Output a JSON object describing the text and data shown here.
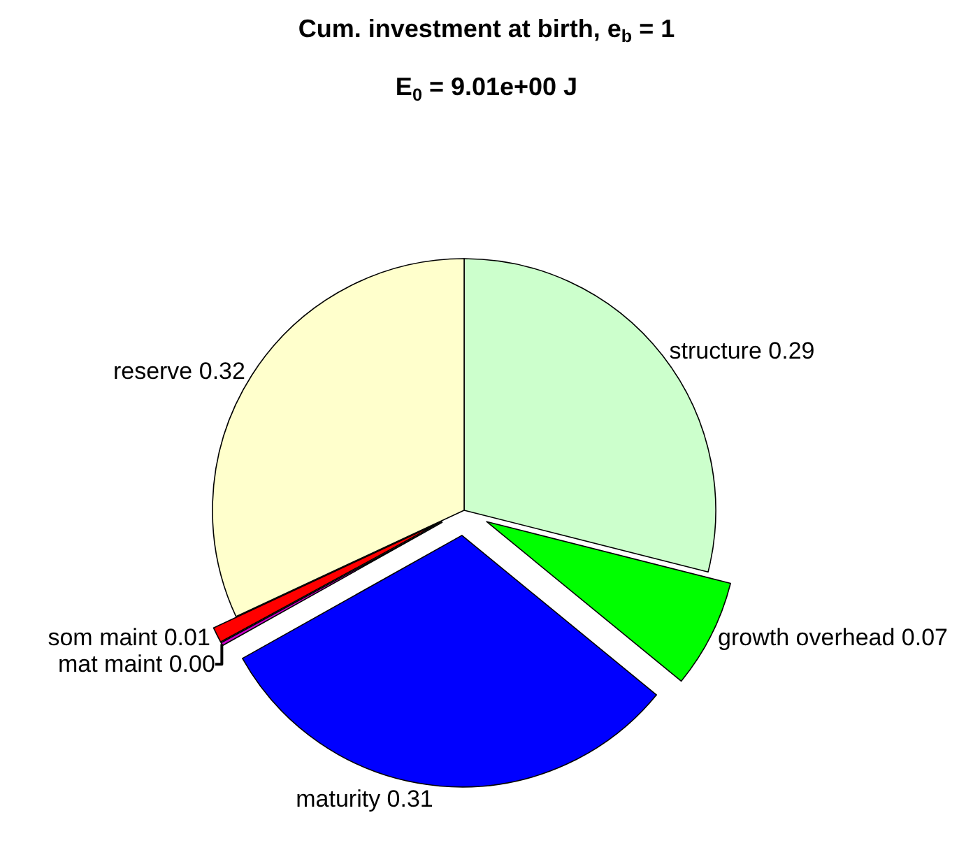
{
  "chart_data": {
    "type": "pie",
    "title": "Cum. investment at birth, e$_{b}$ = 1",
    "subtitle": "E$_{0}$ = 9.01e+00 J",
    "categories": [
      "structure",
      "growth overhead",
      "maturity",
      "mat maint",
      "som maint",
      "reserve"
    ],
    "values": [
      0.29,
      0.07,
      0.31,
      0.002,
      0.01,
      0.32
    ],
    "value_labels": [
      "0.29",
      "0.07",
      "0.31",
      "0.00",
      "0.01",
      "0.32"
    ],
    "colors": [
      "#ccffcc",
      "#00ff00",
      "#0000ff",
      "#cc00cc",
      "#ff0000",
      "#ffffcc"
    ]
  }
}
